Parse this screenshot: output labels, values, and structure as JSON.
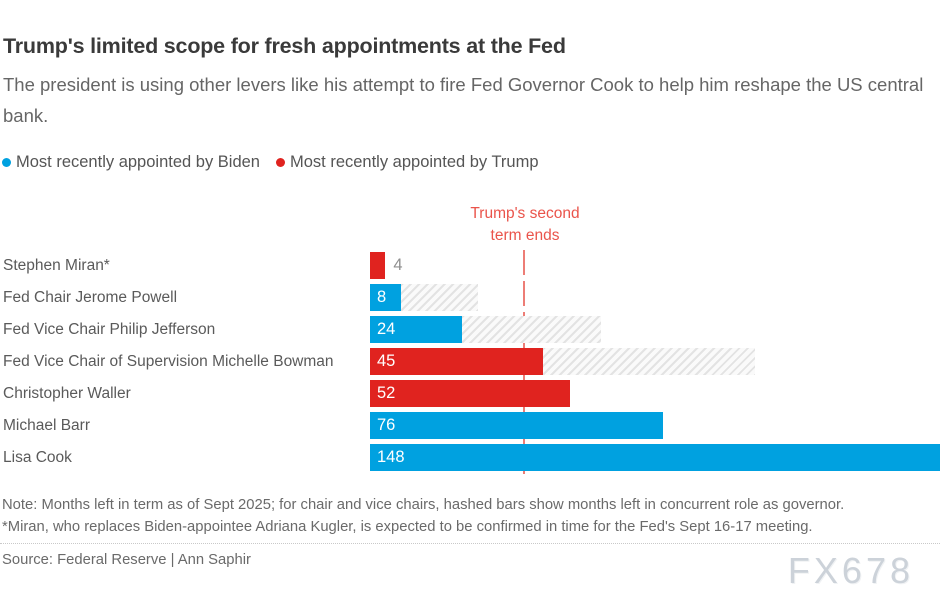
{
  "header": {
    "title": "Trump's limited scope for fresh appointments at the Fed",
    "subtitle": "The president is using other levers like his attempt to fire Fed Governor Cook to help him reshape the US central bank."
  },
  "legend": [
    {
      "label": "Most recently appointed by Biden",
      "color": "#00a1e0",
      "icon": "blue-dot"
    },
    {
      "label": "Most recently appointed by Trump",
      "color": "#e0231f",
      "icon": "red-dot"
    }
  ],
  "chart_data": {
    "type": "bar",
    "orientation": "horizontal",
    "unit": "months",
    "xlim": [
      0,
      148
    ],
    "grid": false,
    "categories": [
      "Stephen Miran*",
      "Fed Chair Jerome Powell",
      "Fed Vice Chair Philip Jefferson",
      "Fed Vice Chair of Supervision Michelle Bowman",
      "Christopher Waller",
      "Michael Barr",
      "Lisa Cook"
    ],
    "rows": [
      {
        "label": "Stephen Miran*",
        "months_left": 4,
        "appointed_by": "Trump",
        "governor_months_total": null,
        "value_label_position": "outside"
      },
      {
        "label": "Fed Chair Jerome Powell",
        "months_left": 8,
        "appointed_by": "Biden",
        "governor_months_total": 28,
        "value_label_position": "inside"
      },
      {
        "label": "Fed Vice Chair Philip Jefferson",
        "months_left": 24,
        "appointed_by": "Biden",
        "governor_months_total": 60,
        "value_label_position": "inside"
      },
      {
        "label": "Fed Vice Chair of Supervision Michelle Bowman",
        "months_left": 45,
        "appointed_by": "Trump",
        "governor_months_total": 100,
        "value_label_position": "inside"
      },
      {
        "label": "Christopher Waller",
        "months_left": 52,
        "appointed_by": "Trump",
        "governor_months_total": null,
        "value_label_position": "inside"
      },
      {
        "label": "Michael Barr",
        "months_left": 76,
        "appointed_by": "Biden",
        "governor_months_total": null,
        "value_label_position": "inside"
      },
      {
        "label": "Lisa Cook",
        "months_left": 148,
        "appointed_by": "Biden",
        "governor_months_total": null,
        "value_label_position": "inside"
      }
    ],
    "annotation": {
      "line1": "Trump's second",
      "line2": "term ends",
      "x_months": 40
    }
  },
  "colors": {
    "biden_blue": "#00a1e0",
    "trump_red": "#e0231f",
    "annotation_red": "#ea544b",
    "dashed_line_red": "#ed7d76",
    "hatch_gray": "#e3e3e3"
  },
  "footer": {
    "note1": "Note: Months left in term as of Sept 2025; for chair and vice chairs, hashed bars show months left in concurrent role as governor.",
    "note2": "*Miran, who replaces Biden-appointee Adriana Kugler, is expected to be confirmed in time for the Fed's Sept 16-17 meeting.",
    "source": "Source: Federal Reserve | Ann Saphir",
    "watermark": "FX678"
  }
}
